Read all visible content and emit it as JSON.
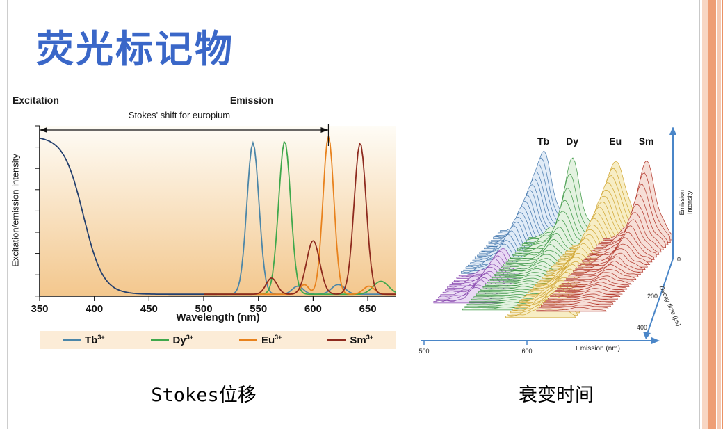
{
  "slide": {
    "title": "荧光标记物",
    "title_color": "#3a67c8"
  },
  "left_figure": {
    "caption": "Stokes位移",
    "excitation_label": "Excitation",
    "emission_label": "Emission",
    "stokes_annotation": "Stokes' shift for europium",
    "ylabel": "Excitation/emission intensity",
    "xlabel": "Wavelength (nm)"
  },
  "right_figure": {
    "caption": "衰变时间",
    "xlabel": "Emission (nm)",
    "ylabel_line1": "Emission",
    "ylabel_line2": "Intensity",
    "decay_label": "Decay time (μs)"
  },
  "chart_data": [
    {
      "type": "line",
      "xlabel": "Wavelength (nm)",
      "ylabel": "Excitation/emission intensity",
      "xlim": [
        350,
        676
      ],
      "ylim": [
        0,
        1
      ],
      "x_ticks": [
        350,
        400,
        450,
        500,
        550,
        600,
        650
      ],
      "annotation": {
        "text": "Stokes' shift for europium",
        "from_nm": 350,
        "to_nm": 614
      },
      "background": {
        "top": "#fefcf6",
        "bottom": "#f3c78d"
      },
      "legend_bg": "#fcecd7",
      "series": [
        {
          "name": "Excitation",
          "color": "#24406e",
          "shape": "sigmoid",
          "center": 390,
          "steepness": 9,
          "height": 0.97,
          "range": [
            350,
            512
          ]
        },
        {
          "name": "Tb3+",
          "legend": "Tb",
          "legend_sup": "3+",
          "color": "#4c86a8",
          "shape": "peaks",
          "range": [
            500,
            676
          ],
          "peaks": [
            {
              "center": 545,
              "height": 0.93,
              "width": 5.5
            },
            {
              "center": 586,
              "height": 0.05,
              "width": 5
            },
            {
              "center": 623,
              "height": 0.06,
              "width": 6
            }
          ]
        },
        {
          "name": "Dy3+",
          "legend": "Dy",
          "legend_sup": "3+",
          "color": "#3fa84c",
          "shape": "peaks",
          "range": [
            500,
            676
          ],
          "peaks": [
            {
              "center": 574,
              "height": 0.94,
              "width": 5.5
            },
            {
              "center": 662,
              "height": 0.08,
              "width": 7
            }
          ]
        },
        {
          "name": "Eu3+",
          "legend": "Eu",
          "legend_sup": "3+",
          "color": "#e8821d",
          "shape": "peaks",
          "range": [
            500,
            676
          ],
          "peaks": [
            {
              "center": 614,
              "height": 0.97,
              "width": 5
            },
            {
              "center": 592,
              "height": 0.06,
              "width": 4
            },
            {
              "center": 651,
              "height": 0.05,
              "width": 5
            }
          ]
        },
        {
          "name": "Sm3+",
          "legend": "Sm",
          "legend_sup": "3+",
          "color": "#8e2a1e",
          "shape": "peaks",
          "range": [
            500,
            676
          ],
          "peaks": [
            {
              "center": 643,
              "height": 0.93,
              "width": 5.5
            },
            {
              "center": 600,
              "height": 0.33,
              "width": 6
            },
            {
              "center": 562,
              "height": 0.1,
              "width": 5
            }
          ]
        }
      ]
    },
    {
      "type": "3d_waterfall",
      "xlabel": "Emission (nm)",
      "ylabel": "Emission Intensity",
      "zlabel": "Decay time (μs)",
      "x_ticks": [
        500,
        600
      ],
      "z_ticks": [
        0,
        200,
        400
      ],
      "n_ridges": 30,
      "axis_color": "#4a86c8",
      "series": [
        {
          "name": "Tb",
          "emission_nm": 545,
          "color": "#4a7cb0",
          "fill": "#e0ebf7",
          "peak_height": 112,
          "decay_tau": 16,
          "front_color": "#8a4bb0",
          "front_fill": "#e9d9f4",
          "front_from": 18
        },
        {
          "name": "Dy",
          "emission_nm": 573,
          "color": "#449c4c",
          "fill": "#e3f2e0",
          "peak_height": 112,
          "decay_tau": 5
        },
        {
          "name": "Eu",
          "emission_nm": 615,
          "color": "#d2a93a",
          "fill": "#f7edc4",
          "peak_height": 118,
          "decay_tau": 16
        },
        {
          "name": "Sm",
          "emission_nm": 645,
          "color": "#b43c30",
          "fill": "#f6ded7",
          "peak_height": 110,
          "decay_tau": 7
        }
      ]
    }
  ],
  "decoration": {
    "edge_line_color": "#cdcdcd",
    "stripe_colors": [
      "#c9c9c9",
      "#f8d6c3",
      "#ee9e75",
      "#f6cab3",
      "#ea9266"
    ]
  }
}
